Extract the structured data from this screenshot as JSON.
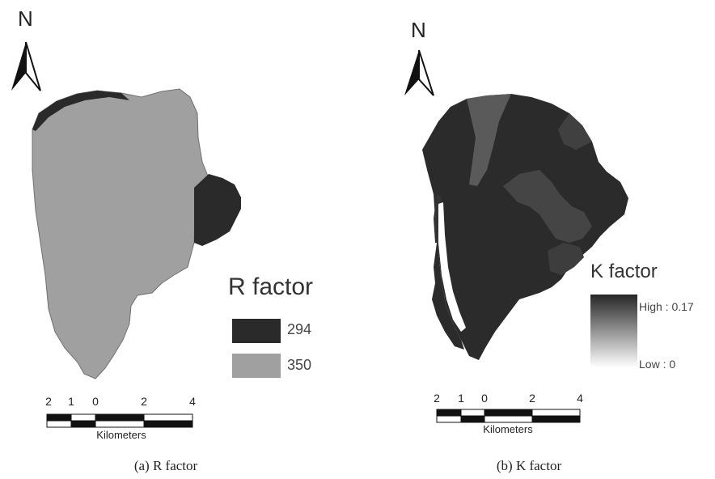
{
  "north_label": "N",
  "scale_bar": {
    "ticks": [
      "2",
      "1",
      "0",
      "2",
      "4"
    ],
    "unit": "Kilometers"
  },
  "maps": [
    {
      "caption": "(a) R factor",
      "legend": {
        "title": "R factor",
        "classes": [
          {
            "label": "294",
            "color": "#2a2a2a"
          },
          {
            "label": "350",
            "color": "#a0a0a0"
          }
        ]
      }
    },
    {
      "caption": "(b) K factor",
      "legend": {
        "title": "K factor",
        "high_label": "High : 0.17",
        "low_label": "Low : 0",
        "high_color": "#262626",
        "low_color": "#ffffff"
      }
    }
  ]
}
